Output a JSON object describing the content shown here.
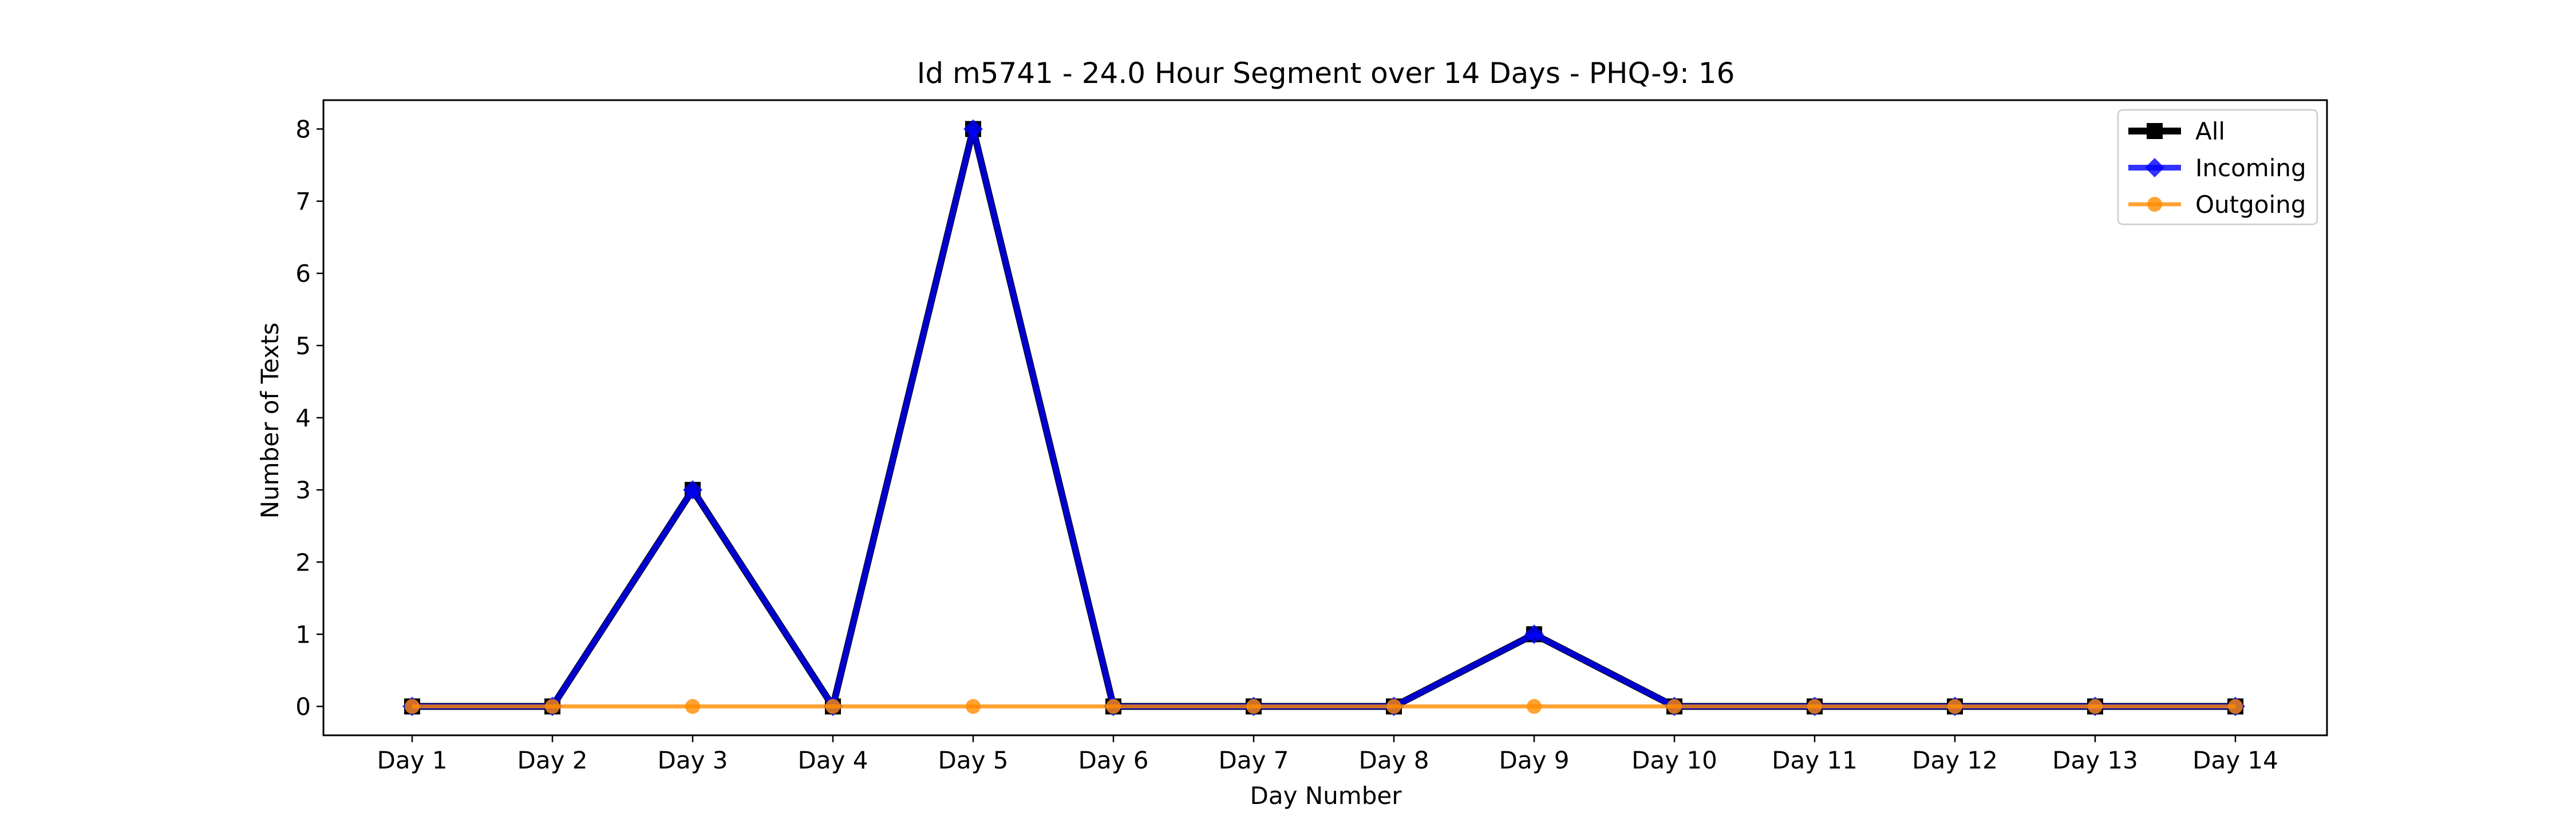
{
  "chart_data": {
    "type": "line",
    "title": "Id m5741 - 24.0 Hour Segment over 14 Days - PHQ-9: 16",
    "xlabel": "Day Number",
    "ylabel": "Number of Texts",
    "categories": [
      "Day 1",
      "Day 2",
      "Day 3",
      "Day 4",
      "Day 5",
      "Day 6",
      "Day 7",
      "Day 8",
      "Day 9",
      "Day 10",
      "Day 11",
      "Day 12",
      "Day 13",
      "Day 14"
    ],
    "yticks": [
      "0",
      "1",
      "2",
      "3",
      "4",
      "5",
      "6",
      "7",
      "8"
    ],
    "ylim": [
      -0.4,
      8.4
    ],
    "grid": false,
    "legend_position": "top-right",
    "series": [
      {
        "name": "All",
        "values": [
          0,
          0,
          3,
          0,
          8,
          0,
          0,
          0,
          1,
          0,
          0,
          0,
          0,
          0
        ],
        "color": "#000000",
        "marker": "square"
      },
      {
        "name": "Incoming",
        "values": [
          0,
          0,
          3,
          0,
          8,
          0,
          0,
          0,
          1,
          0,
          0,
          0,
          0,
          0
        ],
        "color": "#0000ff",
        "marker": "diamond"
      },
      {
        "name": "Outgoing",
        "values": [
          0,
          0,
          0,
          0,
          0,
          0,
          0,
          0,
          0,
          0,
          0,
          0,
          0,
          0
        ],
        "color": "#ff8c00",
        "marker": "circle"
      }
    ]
  }
}
